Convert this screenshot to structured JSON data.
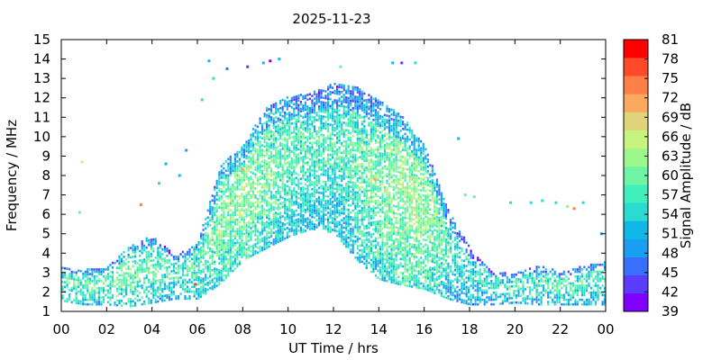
{
  "chart_data": {
    "type": "heatmap",
    "title": "2025-11-23",
    "xlabel": "UT Time / hrs",
    "ylabel": "Frequency / MHz",
    "colorbar_label": "Signal Amplitude / dB",
    "xlim": [
      0,
      24
    ],
    "ylim": [
      1,
      15
    ],
    "x_ticks": [
      "00",
      "02",
      "04",
      "06",
      "08",
      "10",
      "12",
      "14",
      "16",
      "18",
      "20",
      "22",
      "00"
    ],
    "y_ticks": [
      "1",
      "2",
      "3",
      "4",
      "5",
      "6",
      "7",
      "8",
      "9",
      "10",
      "11",
      "12",
      "13",
      "14",
      "15"
    ],
    "colorbar_ticks": [
      "39",
      "42",
      "45",
      "48",
      "51",
      "54",
      "57",
      "60",
      "63",
      "66",
      "69",
      "72",
      "75",
      "78",
      "81"
    ],
    "colorbar_range": [
      39,
      81
    ],
    "colorbar_colors": [
      "#8000ff",
      "#5a3cfe",
      "#3870fd",
      "#1a9ef2",
      "#0fb8e6",
      "#2adcd0",
      "#40f0bc",
      "#6ef4a4",
      "#9cf88c",
      "#c6f47e",
      "#e0d47a",
      "#fca960",
      "#ff7f49",
      "#ff4a2a",
      "#ff0000"
    ],
    "grid": false,
    "echo_envelope": [
      {
        "t": 0.0,
        "fmin": 1.5,
        "fmax": 3.2,
        "level": 57
      },
      {
        "t": 1.0,
        "fmin": 1.3,
        "fmax": 3.1,
        "level": 58
      },
      {
        "t": 2.0,
        "fmin": 1.3,
        "fmax": 3.2,
        "level": 58
      },
      {
        "t": 3.0,
        "fmin": 1.2,
        "fmax": 4.3,
        "level": 60
      },
      {
        "t": 4.0,
        "fmin": 1.4,
        "fmax": 4.9,
        "level": 58
      },
      {
        "t": 5.0,
        "fmin": 1.6,
        "fmax": 3.8,
        "level": 56
      },
      {
        "t": 6.0,
        "fmin": 1.6,
        "fmax": 4.5,
        "level": 58
      },
      {
        "t": 7.0,
        "fmin": 2.4,
        "fmax": 8.5,
        "level": 60
      },
      {
        "t": 8.0,
        "fmin": 3.6,
        "fmax": 9.5,
        "level": 62
      },
      {
        "t": 9.0,
        "fmin": 4.2,
        "fmax": 11.5,
        "level": 60
      },
      {
        "t": 10.0,
        "fmin": 4.8,
        "fmax": 12.0,
        "level": 58
      },
      {
        "t": 11.0,
        "fmin": 5.2,
        "fmax": 12.2,
        "level": 57
      },
      {
        "t": 12.0,
        "fmin": 5.0,
        "fmax": 12.7,
        "level": 57
      },
      {
        "t": 13.0,
        "fmin": 3.6,
        "fmax": 12.5,
        "level": 58
      },
      {
        "t": 14.0,
        "fmin": 2.6,
        "fmax": 11.8,
        "level": 60
      },
      {
        "t": 15.0,
        "fmin": 2.3,
        "fmax": 11.0,
        "level": 62
      },
      {
        "t": 16.0,
        "fmin": 2.1,
        "fmax": 9.5,
        "level": 62
      },
      {
        "t": 17.0,
        "fmin": 1.6,
        "fmax": 6.2,
        "level": 57
      },
      {
        "t": 18.0,
        "fmin": 1.3,
        "fmax": 4.2,
        "level": 55
      },
      {
        "t": 19.0,
        "fmin": 1.3,
        "fmax": 3.0,
        "level": 55
      },
      {
        "t": 20.0,
        "fmin": 1.4,
        "fmax": 2.9,
        "level": 56
      },
      {
        "t": 21.0,
        "fmin": 1.3,
        "fmax": 3.3,
        "level": 57
      },
      {
        "t": 22.0,
        "fmin": 1.3,
        "fmax": 3.0,
        "level": 57
      },
      {
        "t": 23.0,
        "fmin": 1.3,
        "fmax": 3.3,
        "level": 57
      },
      {
        "t": 24.0,
        "fmin": 1.3,
        "fmax": 3.5,
        "level": 57
      }
    ],
    "isolated_points": [
      {
        "t": 0.9,
        "f": 8.7,
        "dB": 66
      },
      {
        "t": 0.8,
        "f": 6.1,
        "dB": 60
      },
      {
        "t": 3.5,
        "f": 6.5,
        "dB": 75
      },
      {
        "t": 4.3,
        "f": 7.6,
        "dB": 54
      },
      {
        "t": 4.6,
        "f": 8.6,
        "dB": 51
      },
      {
        "t": 5.5,
        "f": 9.3,
        "dB": 48
      },
      {
        "t": 5.2,
        "f": 8.0,
        "dB": 51
      },
      {
        "t": 6.2,
        "f": 11.9,
        "dB": 54
      },
      {
        "t": 6.5,
        "f": 13.9,
        "dB": 51
      },
      {
        "t": 6.7,
        "f": 13.0,
        "dB": 54
      },
      {
        "t": 7.3,
        "f": 13.5,
        "dB": 45
      },
      {
        "t": 8.2,
        "f": 13.6,
        "dB": 42
      },
      {
        "t": 8.9,
        "f": 13.8,
        "dB": 51
      },
      {
        "t": 9.2,
        "f": 13.9,
        "dB": 39
      },
      {
        "t": 9.6,
        "f": 14.0,
        "dB": 51
      },
      {
        "t": 12.3,
        "f": 13.6,
        "dB": 60
      },
      {
        "t": 14.6,
        "f": 13.8,
        "dB": 51
      },
      {
        "t": 15.0,
        "f": 13.8,
        "dB": 42
      },
      {
        "t": 15.6,
        "f": 13.8,
        "dB": 54
      },
      {
        "t": 17.5,
        "f": 9.9,
        "dB": 51
      },
      {
        "t": 17.8,
        "f": 7.0,
        "dB": 60
      },
      {
        "t": 18.2,
        "f": 6.9,
        "dB": 60
      },
      {
        "t": 19.8,
        "f": 6.6,
        "dB": 54
      },
      {
        "t": 20.7,
        "f": 6.6,
        "dB": 54
      },
      {
        "t": 21.2,
        "f": 6.7,
        "dB": 54
      },
      {
        "t": 21.8,
        "f": 6.6,
        "dB": 54
      },
      {
        "t": 22.3,
        "f": 6.4,
        "dB": 63
      },
      {
        "t": 22.6,
        "f": 6.3,
        "dB": 75
      },
      {
        "t": 23.0,
        "f": 6.6,
        "dB": 54
      },
      {
        "t": 23.8,
        "f": 5.0,
        "dB": 51
      },
      {
        "t": 5.9,
        "f": 2.4,
        "dB": 78
      },
      {
        "t": 13.8,
        "f": 7.8,
        "dB": 72
      },
      {
        "t": 8.0,
        "f": 8.3,
        "dB": 72
      },
      {
        "t": 15.5,
        "f": 7.9,
        "dB": 69
      }
    ]
  }
}
